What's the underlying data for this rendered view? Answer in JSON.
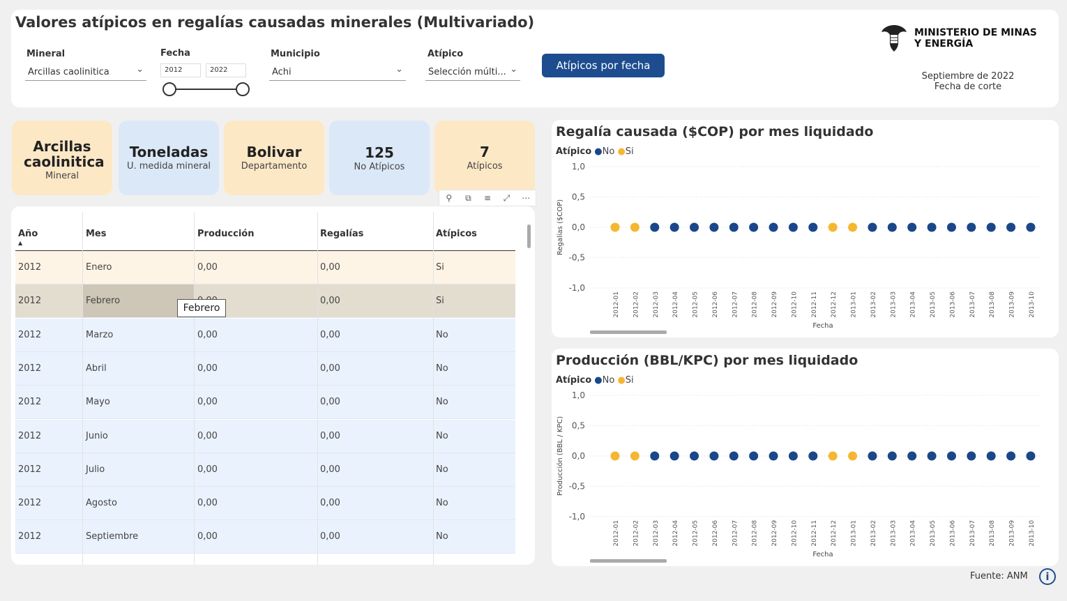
{
  "header": {
    "title": "Valores atípicos en regalías causadas minerales (Multivariado)",
    "mineral": {
      "label": "Mineral",
      "value": "Arcillas caolinitica"
    },
    "fecha": {
      "label": "Fecha",
      "from": "2012",
      "to": "2022"
    },
    "municipio": {
      "label": "Municipio",
      "value": "Achi"
    },
    "atipico": {
      "label": "Atípico",
      "value": "Selección múlti..."
    },
    "button_label": "Atípicos por fecha",
    "ministry": [
      "MINISTERIO DE MINAS",
      "Y ENERGÍA"
    ],
    "cut_date": "Septiembre de 2022",
    "cut_label": "Fecha de corte"
  },
  "cards": [
    {
      "big": "Arcillas caolinitica",
      "small": "Mineral",
      "color": "#fde8c6"
    },
    {
      "big": "Toneladas",
      "small": "U. medida mineral",
      "color": "#dbe8f8"
    },
    {
      "big": "Bolivar",
      "small": "Departamento",
      "color": "#fde8c6"
    },
    {
      "big": "125",
      "small": "No Atípicos",
      "color": "#dbe8f8"
    },
    {
      "big": "7",
      "small": "Atípicos",
      "color": "#fde8c6"
    }
  ],
  "visual_header_icons": [
    "pin-icon",
    "copy-icon",
    "filter-icon",
    "focus-icon",
    "more-icon"
  ],
  "table": {
    "columns": [
      "Año",
      "Mes",
      "Producción",
      "Regalías",
      "Atípicos"
    ],
    "rows": [
      [
        "2012",
        "Enero",
        "0,00",
        "0,00",
        "Si"
      ],
      [
        "2012",
        "Febrero",
        "0,00",
        "0,00",
        "Si"
      ],
      [
        "2012",
        "Marzo",
        "0,00",
        "0,00",
        "No"
      ],
      [
        "2012",
        "Abril",
        "0,00",
        "0,00",
        "No"
      ],
      [
        "2012",
        "Mayo",
        "0,00",
        "0,00",
        "No"
      ],
      [
        "2012",
        "Junio",
        "0,00",
        "0,00",
        "No"
      ],
      [
        "2012",
        "Julio",
        "0,00",
        "0,00",
        "No"
      ],
      [
        "2012",
        "Agosto",
        "0,00",
        "0,00",
        "No"
      ],
      [
        "2012",
        "Septiembre",
        "0,00",
        "0,00",
        "No"
      ]
    ],
    "tooltip": "Febrero"
  },
  "colors": {
    "no": "#1a4789",
    "si": "#f5b731",
    "row_si": "#fdf4e6",
    "row_no": "#eaf2fd",
    "row_selected": "#e3ddd0"
  },
  "chart_data": [
    {
      "type": "scatter",
      "title": "Regalía causada ($COP) por mes liquidado",
      "legend_title": "Atípico",
      "legend": [
        "No",
        "Si"
      ],
      "xlabel": "Fecha",
      "ylabel": "Regalías ($COP)",
      "ylim": [
        -1,
        1
      ],
      "yticks": [
        "1,0",
        "0,5",
        "0,0",
        "-0,5",
        "-1,0"
      ],
      "x": [
        "2012-01",
        "2012-02",
        "2012-03",
        "2012-04",
        "2012-05",
        "2012-06",
        "2012-07",
        "2012-08",
        "2012-09",
        "2012-10",
        "2012-11",
        "2012-12",
        "2013-01",
        "2013-02",
        "2013-03",
        "2013-04",
        "2013-05",
        "2013-06",
        "2013-07",
        "2013-08",
        "2013-09",
        "2013-10"
      ],
      "y": [
        0,
        0,
        0,
        0,
        0,
        0,
        0,
        0,
        0,
        0,
        0,
        0,
        0,
        0,
        0,
        0,
        0,
        0,
        0,
        0,
        0,
        0
      ],
      "atipico": [
        "Si",
        "Si",
        "No",
        "No",
        "No",
        "No",
        "No",
        "No",
        "No",
        "No",
        "No",
        "Si",
        "Si",
        "No",
        "No",
        "No",
        "No",
        "No",
        "No",
        "No",
        "No",
        "No"
      ]
    },
    {
      "type": "scatter",
      "title": "Producción (BBL/KPC) por mes liquidado",
      "legend_title": "Atípico",
      "legend": [
        "No",
        "Si"
      ],
      "xlabel": "Fecha",
      "ylabel": "Producción (BBL / KPC)",
      "ylim": [
        -1,
        1
      ],
      "yticks": [
        "1,0",
        "0,5",
        "0,0",
        "-0,5",
        "-1,0"
      ],
      "x": [
        "2012-01",
        "2012-02",
        "2012-03",
        "2012-04",
        "2012-05",
        "2012-06",
        "2012-07",
        "2012-08",
        "2012-09",
        "2012-10",
        "2012-11",
        "2012-12",
        "2013-01",
        "2013-02",
        "2013-03",
        "2013-04",
        "2013-05",
        "2013-06",
        "2013-07",
        "2013-08",
        "2013-09",
        "2013-10"
      ],
      "y": [
        0,
        0,
        0,
        0,
        0,
        0,
        0,
        0,
        0,
        0,
        0,
        0,
        0,
        0,
        0,
        0,
        0,
        0,
        0,
        0,
        0,
        0
      ],
      "atipico": [
        "Si",
        "Si",
        "No",
        "No",
        "No",
        "No",
        "No",
        "No",
        "No",
        "No",
        "No",
        "Si",
        "Si",
        "No",
        "No",
        "No",
        "No",
        "No",
        "No",
        "No",
        "No",
        "No"
      ]
    }
  ],
  "footer": {
    "source": "Fuente: ANM",
    "info_glyph": "i"
  }
}
